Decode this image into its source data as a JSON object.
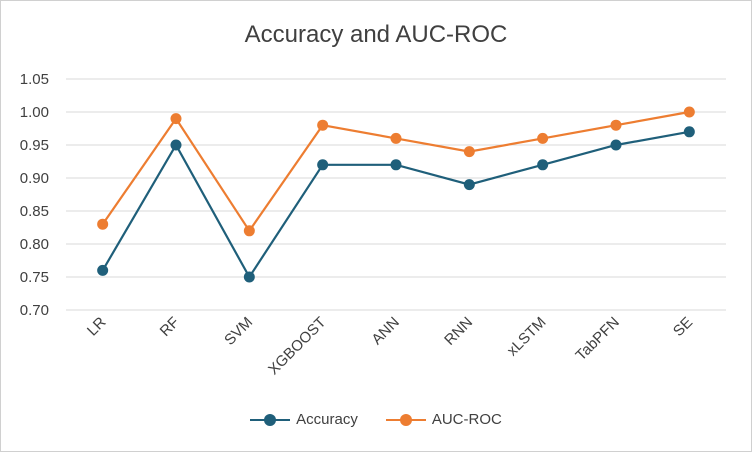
{
  "chart_data": {
    "type": "line",
    "title": "Accuracy and AUC-ROC",
    "categories": [
      "LR",
      "RF",
      "SVM",
      "XGBOOST",
      "ANN",
      "RNN",
      "xLSTM",
      "TabPFN",
      "SE"
    ],
    "series": [
      {
        "name": "Accuracy",
        "color": "#1f5f7a",
        "values": [
          0.76,
          0.95,
          0.75,
          0.92,
          0.92,
          0.89,
          0.92,
          0.95,
          0.97
        ]
      },
      {
        "name": "AUC-ROC",
        "color": "#ed7d31",
        "values": [
          0.83,
          0.99,
          0.82,
          0.98,
          0.96,
          0.94,
          0.96,
          0.98,
          1.0
        ]
      }
    ],
    "ylim": [
      0.7,
      1.05
    ],
    "yticks": [
      "0.70",
      "0.75",
      "0.80",
      "0.85",
      "0.90",
      "0.95",
      "1.00",
      "1.05"
    ],
    "grid": true,
    "legend_position": "bottom"
  }
}
